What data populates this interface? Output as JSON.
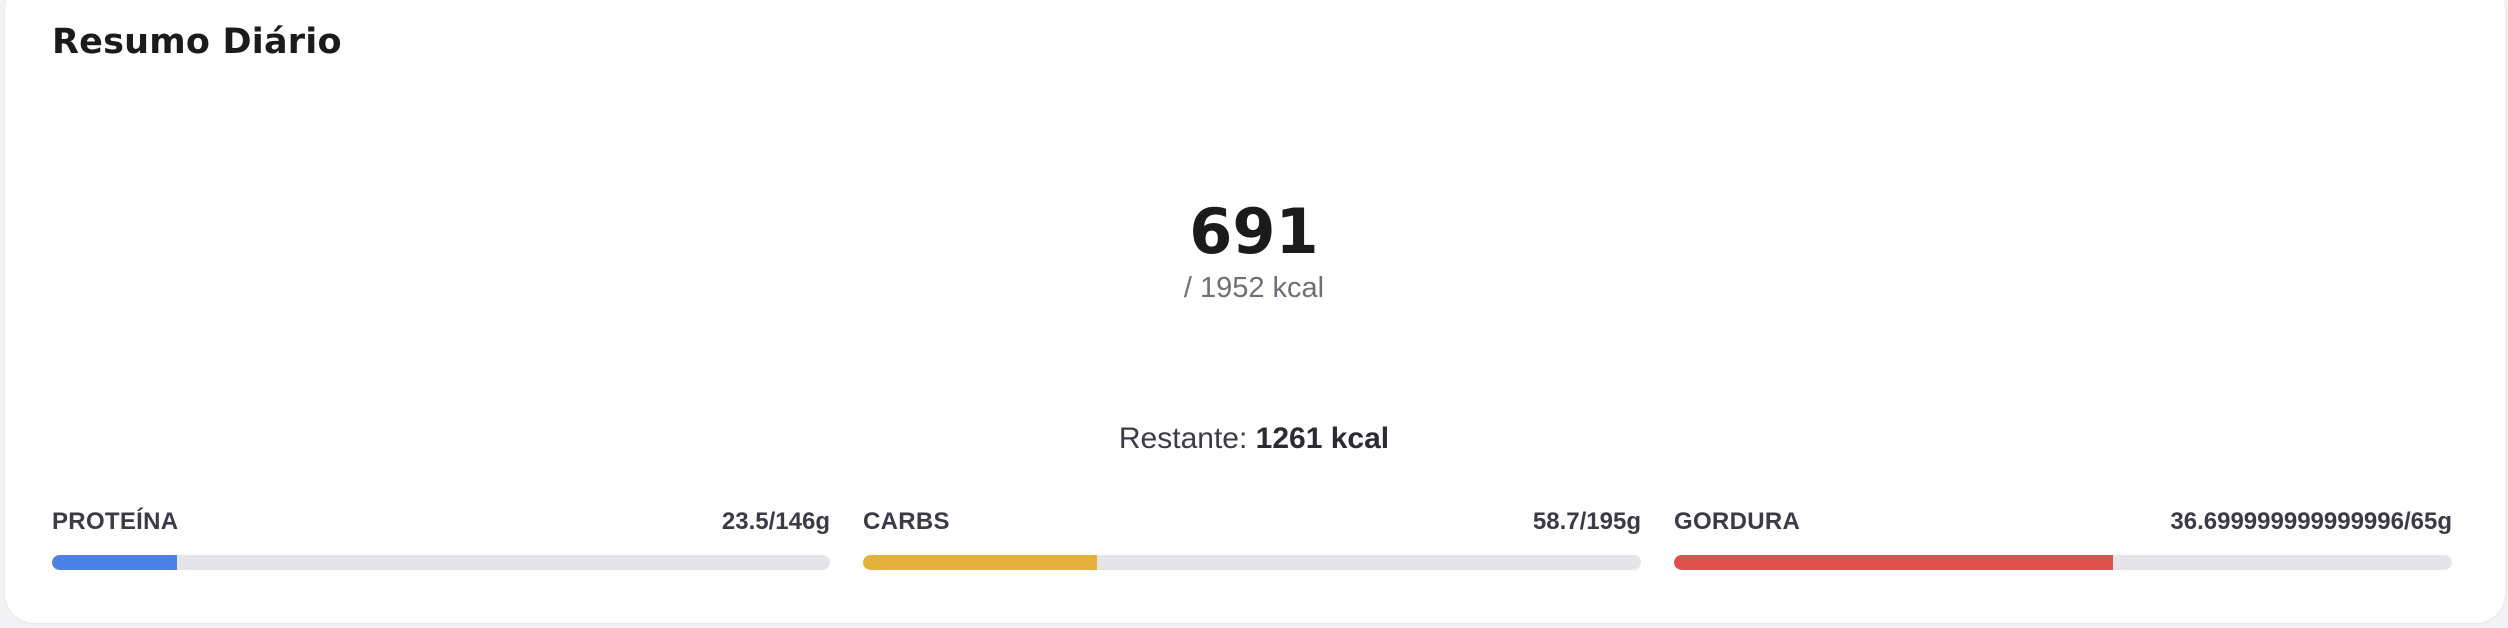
{
  "summary": {
    "title": "Resumo Diário",
    "calories_consumed": "691",
    "calories_goal_text": "/ 1952 kcal",
    "remaining_label": "Restante: ",
    "remaining_value": "1261 kcal"
  },
  "macros": [
    {
      "label": "PROTEÍNA",
      "amount": "23.5/146g",
      "consumed": 23.5,
      "goal": 146,
      "color": "#4c82e6"
    },
    {
      "label": "CARBS",
      "amount": "58.7/195g",
      "consumed": 58.7,
      "goal": 195,
      "color": "#e4b23b"
    },
    {
      "label": "GORDURA",
      "amount": "36.699999999999996/65g",
      "consumed": 36.699999999999996,
      "goal": 65,
      "color": "#e0504c"
    }
  ]
}
